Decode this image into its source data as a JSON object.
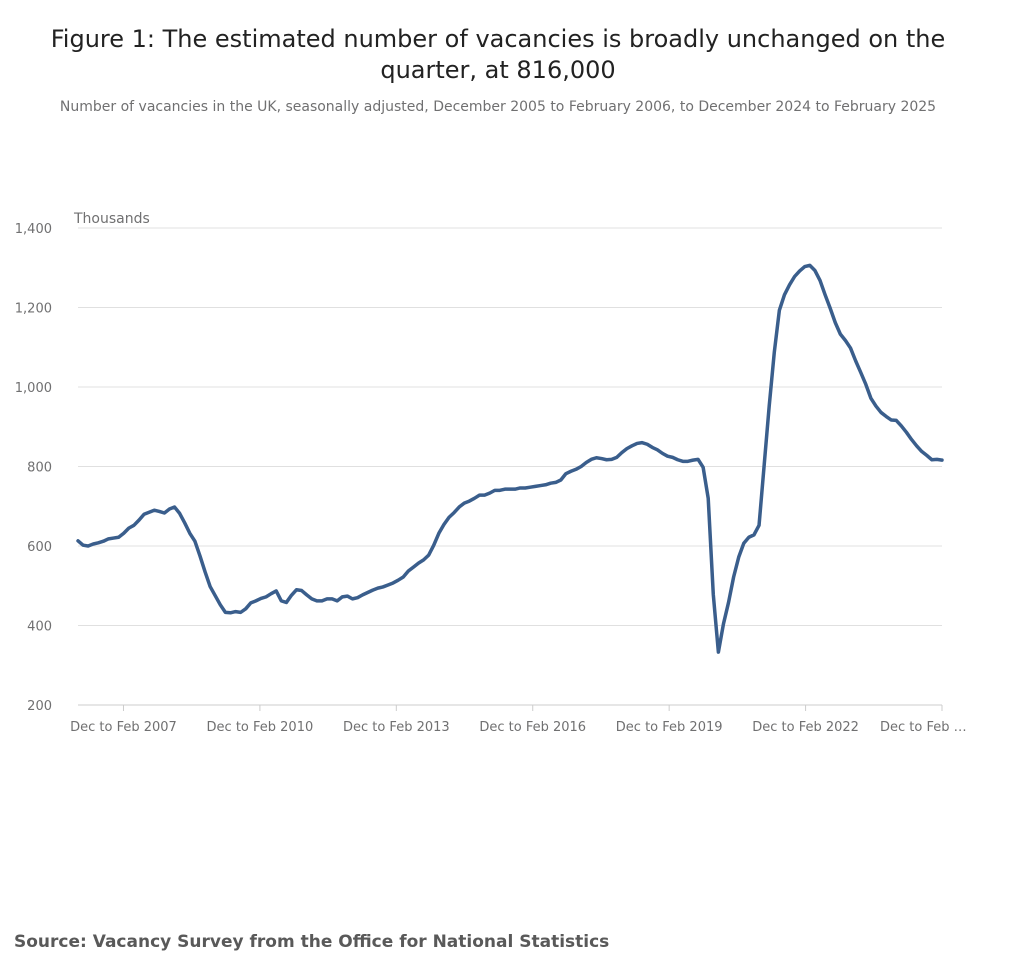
{
  "title": "Figure 1: The estimated number of vacancies is broadly unchanged on the quarter, at 816,000",
  "subtitle": "Number of vacancies in the UK, seasonally adjusted, December 2005 to February 2006, to December 2024 to February 2025",
  "source": "Source: Vacancy Survey from the Office for National Statistics",
  "colors": {
    "line": "#3a5e8c",
    "grid": "#e0e0e0",
    "axis": "#cccccc"
  },
  "chart_data": {
    "type": "line",
    "title": "Figure 1: The estimated number of vacancies is broadly unchanged on the quarter, at 816,000",
    "ylabel": "Thousands",
    "ylim": [
      200,
      1400
    ],
    "yticks": [
      "200",
      "400",
      "600",
      "800",
      "1,000",
      "1,200",
      "1,400"
    ],
    "xtick_labels": [
      "Dec to Feb 2007",
      "Dec to Feb 2010",
      "Dec to Feb 2013",
      "Dec to Feb 2016",
      "Dec to Feb 2019",
      "Dec to Feb 2022",
      "Dec to Feb …"
    ],
    "grid": true,
    "series": [
      {
        "values": [
          613,
          602,
          600,
          605,
          608,
          612,
          618,
          620,
          622,
          632,
          645,
          652,
          665,
          680,
          685,
          690,
          687,
          683,
          693,
          698,
          682,
          658,
          632,
          612,
          575,
          535,
          498,
          475,
          452,
          433,
          432,
          435,
          433,
          442,
          457,
          462,
          468,
          472,
          480,
          487,
          462,
          458,
          476,
          490,
          488,
          477,
          467,
          462,
          462,
          467,
          467,
          462,
          472,
          474,
          467,
          470,
          477,
          483,
          489,
          494,
          497,
          502,
          507,
          514,
          522,
          537,
          547,
          557,
          565,
          577,
          602,
          632,
          654,
          672,
          684,
          698,
          708,
          713,
          720,
          728,
          728,
          733,
          740,
          740,
          743,
          743,
          743,
          746,
          746,
          748,
          750,
          752,
          754,
          758,
          760,
          766,
          782,
          788,
          793,
          800,
          810,
          818,
          822,
          820,
          817,
          818,
          823,
          835,
          845,
          852,
          858,
          860,
          856,
          848,
          842,
          833,
          826,
          823,
          817,
          813,
          813,
          816,
          818,
          798,
          720,
          478,
          333,
          404,
          458,
          522,
          572,
          607,
          622,
          628,
          652,
          802,
          952,
          1087,
          1193,
          1232,
          1257,
          1278,
          1292,
          1303,
          1306,
          1293,
          1268,
          1232,
          1198,
          1162,
          1133,
          1117,
          1098,
          1066,
          1037,
          1007,
          972,
          952,
          936,
          926,
          917,
          916,
          902,
          886,
          868,
          852,
          838,
          828,
          817,
          818,
          816
        ]
      }
    ]
  }
}
